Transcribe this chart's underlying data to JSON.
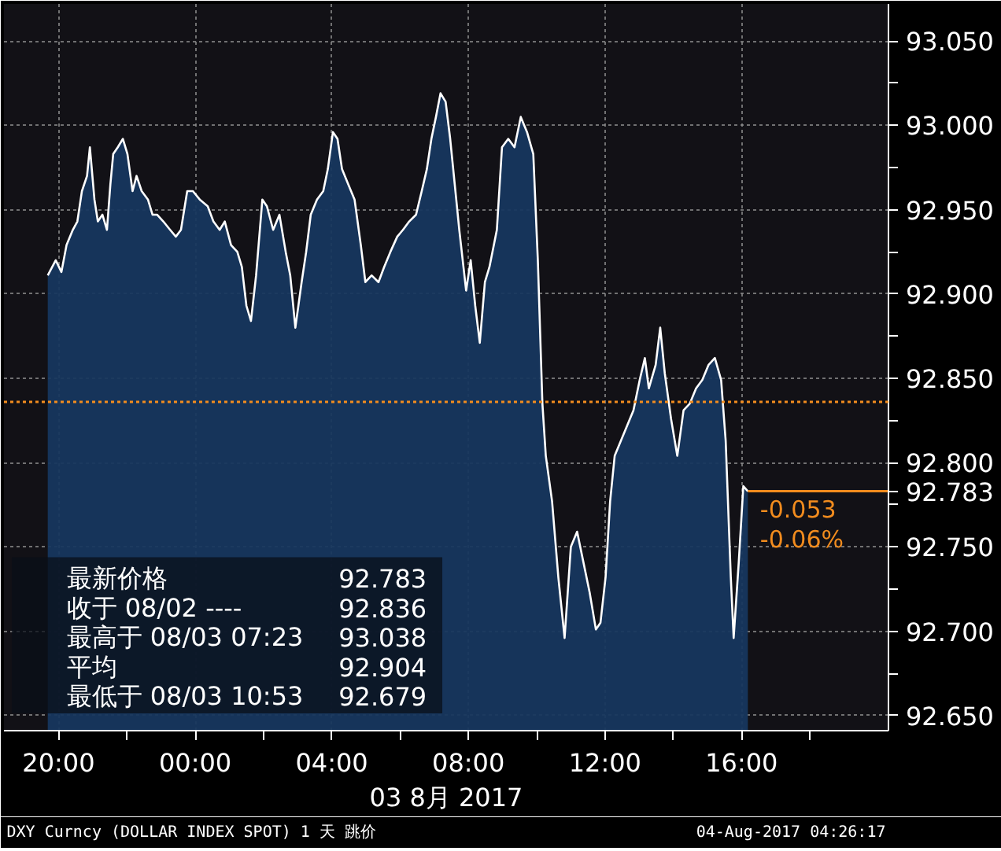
{
  "chart_data": {
    "type": "area",
    "xlabel": "03 8月 2017",
    "x": [
      "2017-08-02T19:41",
      "2017-08-02T19:55",
      "2017-08-02T20:05",
      "2017-08-02T20:14",
      "2017-08-02T20:25",
      "2017-08-02T20:33",
      "2017-08-02T20:41",
      "2017-08-02T20:50",
      "2017-08-02T20:55",
      "2017-08-02T21:03",
      "2017-08-02T21:09",
      "2017-08-02T21:17",
      "2017-08-02T21:25",
      "2017-08-02T21:31",
      "2017-08-02T21:36",
      "2017-08-02T21:44",
      "2017-08-02T21:53",
      "2017-08-02T22:01",
      "2017-08-02T22:10",
      "2017-08-02T22:17",
      "2017-08-02T22:26",
      "2017-08-02T22:37",
      "2017-08-02T22:45",
      "2017-08-02T22:53",
      "2017-08-02T23:04",
      "2017-08-02T23:16",
      "2017-08-02T23:26",
      "2017-08-02T23:35",
      "2017-08-02T23:46",
      "2017-08-02T23:56",
      "2017-08-03T00:08",
      "2017-08-03T00:22",
      "2017-08-03T00:32",
      "2017-08-03T00:43",
      "2017-08-03T00:52",
      "2017-08-03T01:03",
      "2017-08-03T01:14",
      "2017-08-03T01:22",
      "2017-08-03T01:30",
      "2017-08-03T01:38",
      "2017-08-03T01:47",
      "2017-08-03T01:58",
      "2017-08-03T02:06",
      "2017-08-03T02:17",
      "2017-08-03T02:28",
      "2017-08-03T02:39",
      "2017-08-03T02:47",
      "2017-08-03T02:56",
      "2017-08-03T03:07",
      "2017-08-03T03:15",
      "2017-08-03T03:23",
      "2017-08-03T03:34",
      "2017-08-03T03:45",
      "2017-08-03T03:53",
      "2017-08-03T04:02",
      "2017-08-03T04:10",
      "2017-08-03T04:18",
      "2017-08-03T04:29",
      "2017-08-03T04:40",
      "2017-08-03T04:51",
      "2017-08-03T04:59",
      "2017-08-03T05:10",
      "2017-08-03T05:22",
      "2017-08-03T05:32",
      "2017-08-03T05:43",
      "2017-08-03T05:55",
      "2017-08-03T06:05",
      "2017-08-03T06:16",
      "2017-08-03T06:28",
      "2017-08-03T06:38",
      "2017-08-03T06:47",
      "2017-08-03T06:55",
      "2017-08-03T07:03",
      "2017-08-03T07:11",
      "2017-08-03T07:20",
      "2017-08-03T07:28",
      "2017-08-03T07:36",
      "2017-08-03T07:44",
      "2017-08-03T07:56",
      "2017-08-03T08:04",
      "2017-08-03T08:12",
      "2017-08-03T08:20",
      "2017-08-03T08:29",
      "2017-08-03T08:37",
      "2017-08-03T08:50",
      "2017-08-03T08:59",
      "2017-08-03T09:10",
      "2017-08-03T09:21",
      "2017-08-03T09:32",
      "2017-08-03T09:43",
      "2017-08-03T09:54",
      "2017-08-03T10:02",
      "2017-08-03T10:10",
      "2017-08-03T10:16",
      "2017-08-03T10:27",
      "2017-08-03T10:38",
      "2017-08-03T10:49",
      "2017-08-03T11:00",
      "2017-08-03T11:11",
      "2017-08-03T11:22",
      "2017-08-03T11:33",
      "2017-08-03T11:44",
      "2017-08-03T11:52",
      "2017-08-03T12:01",
      "2017-08-03T12:09",
      "2017-08-03T12:17",
      "2017-08-03T12:28",
      "2017-08-03T12:39",
      "2017-08-03T12:50",
      "2017-08-03T13:01",
      "2017-08-03T13:10",
      "2017-08-03T13:17",
      "2017-08-03T13:29",
      "2017-08-03T13:37",
      "2017-08-03T13:45",
      "2017-08-03T13:56",
      "2017-08-03T14:07",
      "2017-08-03T14:18",
      "2017-08-03T14:29",
      "2017-08-03T14:40",
      "2017-08-03T14:51",
      "2017-08-03T15:02",
      "2017-08-03T15:13",
      "2017-08-03T15:24",
      "2017-08-03T15:32",
      "2017-08-03T15:41",
      "2017-08-03T15:46",
      "2017-08-03T15:55",
      "2017-08-03T16:03",
      "2017-08-03T16:11"
    ],
    "series": [
      {
        "color": "#17375e",
        "values": [
          92.911,
          92.92,
          92.913,
          92.929,
          92.938,
          92.943,
          92.961,
          92.97,
          92.987,
          92.956,
          92.943,
          92.947,
          92.938,
          92.965,
          92.983,
          92.987,
          92.992,
          92.983,
          92.961,
          92.97,
          92.961,
          92.956,
          92.947,
          92.947,
          92.943,
          92.938,
          92.934,
          92.938,
          92.961,
          92.961,
          92.956,
          92.952,
          92.943,
          92.938,
          92.943,
          92.929,
          92.925,
          92.916,
          92.893,
          92.884,
          92.911,
          92.956,
          92.952,
          92.938,
          92.947,
          92.925,
          92.911,
          92.88,
          92.907,
          92.925,
          92.947,
          92.956,
          92.961,
          92.974,
          92.996,
          92.992,
          92.974,
          92.965,
          92.956,
          92.929,
          92.907,
          92.911,
          92.907,
          92.916,
          92.925,
          92.934,
          92.938,
          92.943,
          92.947,
          92.961,
          92.974,
          92.992,
          93.005,
          93.019,
          93.014,
          92.992,
          92.965,
          92.938,
          92.902,
          92.92,
          92.893,
          92.871,
          92.907,
          92.916,
          92.938,
          92.987,
          92.992,
          92.987,
          93.005,
          92.996,
          92.983,
          92.92,
          92.835,
          92.804,
          92.777,
          92.732,
          92.696,
          92.75,
          92.759,
          92.741,
          92.723,
          92.701,
          92.705,
          92.732,
          92.777,
          92.804,
          92.813,
          92.822,
          92.831,
          92.849,
          92.862,
          92.844,
          92.858,
          92.88,
          92.853,
          92.826,
          92.804,
          92.831,
          92.835,
          92.844,
          92.849,
          92.858,
          92.862,
          92.849,
          92.813,
          92.732,
          92.696,
          92.741,
          92.786,
          92.783
        ]
      }
    ],
    "xlim": [
      "2017-08-02T18:24",
      "2017-08-03T20:18"
    ],
    "xticks": [
      {
        "value": "2017-08-02T20:00",
        "label": "20:00"
      },
      {
        "value": "2017-08-02T22:00",
        "label": null
      },
      {
        "value": "2017-08-03T00:00",
        "label": "00:00"
      },
      {
        "value": "2017-08-03T02:00",
        "label": null
      },
      {
        "value": "2017-08-03T04:00",
        "label": "04:00"
      },
      {
        "value": "2017-08-03T06:00",
        "label": null
      },
      {
        "value": "2017-08-03T08:00",
        "label": "08:00"
      },
      {
        "value": "2017-08-03T10:00",
        "label": null
      },
      {
        "value": "2017-08-03T12:00",
        "label": "12:00"
      },
      {
        "value": "2017-08-03T14:00",
        "label": null
      },
      {
        "value": "2017-08-03T16:00",
        "label": "16:00"
      },
      {
        "value": "2017-08-03T18:00",
        "label": null
      }
    ],
    "ylim": [
      92.641,
      93.072
    ],
    "yticks": [
      {
        "value": 92.65,
        "label": "92.650"
      },
      {
        "value": 92.675,
        "label": null
      },
      {
        "value": 92.7,
        "label": "92.700"
      },
      {
        "value": 92.725,
        "label": null
      },
      {
        "value": 92.75,
        "label": "92.750"
      },
      {
        "value": 92.775,
        "label": null
      },
      {
        "value": 92.8,
        "label": "92.800"
      },
      {
        "value": 92.825,
        "label": null
      },
      {
        "value": 92.85,
        "label": "92.850"
      },
      {
        "value": 92.875,
        "label": null
      },
      {
        "value": 92.9,
        "label": "92.900"
      },
      {
        "value": 92.925,
        "label": null
      },
      {
        "value": 92.95,
        "label": "92.950"
      },
      {
        "value": 92.975,
        "label": null
      },
      {
        "value": 93.0,
        "label": "93.000"
      },
      {
        "value": 93.025,
        "label": null
      },
      {
        "value": 93.05,
        "label": "93.050"
      }
    ],
    "grid": true,
    "ref_lines": [
      {
        "axis": "y",
        "value": 92.836,
        "color": "#f28c1e",
        "line_style": "dotted"
      },
      {
        "axis": "y",
        "value": 92.783,
        "label": "92.783",
        "color": "#f28c1e",
        "line_style": "solid"
      }
    ],
    "annotations": [
      "最新价格",
      "92.783",
      "收于 08/02 ----",
      "92.836",
      "最高于 08/03 07:23",
      "93.038",
      "平均",
      "92.904",
      "最低于 08/03 10:53",
      "92.679",
      "-0.053",
      "-0.06%",
      "DXY Curncy (DOLLAR INDEX SPOT) 1 天  跳价",
      "04-Aug-2017 04:26:17"
    ]
  }
}
